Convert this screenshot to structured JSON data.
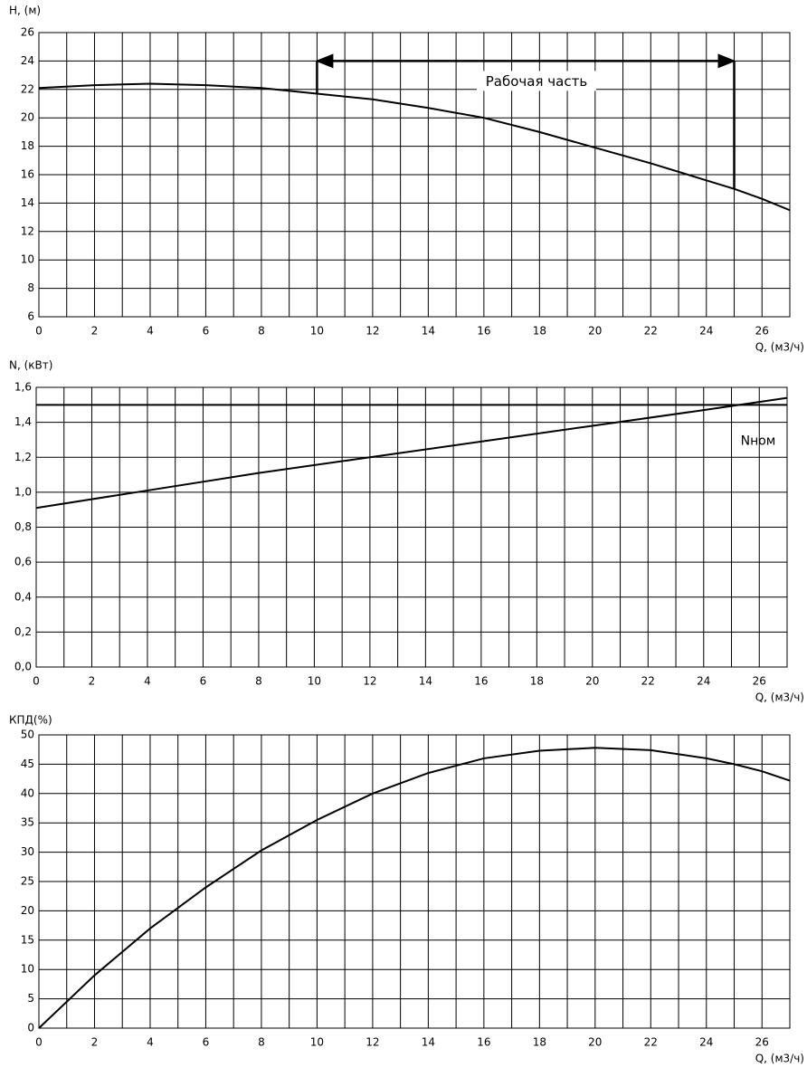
{
  "chart_data": [
    {
      "type": "line",
      "y_label": "H, (м)",
      "x_label": "Q, (м3/ч)",
      "x": [
        0,
        2,
        4,
        6,
        8,
        10,
        12,
        14,
        16,
        18,
        20,
        22,
        24,
        25,
        26,
        27
      ],
      "series": [
        {
          "color": "#000000",
          "values": [
            22.1,
            22.3,
            22.4,
            22.3,
            22.1,
            21.7,
            21.3,
            20.7,
            20.0,
            19.0,
            17.9,
            16.8,
            15.6,
            15.0,
            14.3,
            13.5
          ]
        }
      ],
      "xlim": [
        0,
        27
      ],
      "xticks": [
        0,
        2,
        4,
        6,
        8,
        10,
        12,
        14,
        16,
        18,
        20,
        22,
        24,
        26
      ],
      "xminor": [
        1,
        3,
        5,
        7,
        9,
        11,
        13,
        15,
        17,
        19,
        21,
        23,
        25,
        27
      ],
      "ylim": [
        6,
        26
      ],
      "yticks": [
        6,
        8,
        10,
        12,
        14,
        16,
        18,
        20,
        22,
        24,
        26
      ],
      "grid": true,
      "annotation": {
        "text": "Рабочая часть",
        "x": [
          10,
          25
        ],
        "y": 24
      }
    },
    {
      "type": "line",
      "y_label": "N, (кВт)",
      "x_label": "Q, (м3/ч)",
      "x": [
        0,
        4,
        8,
        12,
        16,
        20,
        24,
        27
      ],
      "series": [
        {
          "color": "#000000",
          "values": [
            0.91,
            1.01,
            1.11,
            1.2,
            1.29,
            1.38,
            1.47,
            1.54
          ]
        }
      ],
      "hline": {
        "value": 1.5,
        "label": "Nном"
      },
      "xlim": [
        0,
        27
      ],
      "xticks": [
        0,
        2,
        4,
        6,
        8,
        10,
        12,
        14,
        16,
        18,
        20,
        22,
        24,
        26
      ],
      "xminor": [
        1,
        3,
        5,
        7,
        9,
        11,
        13,
        15,
        17,
        19,
        21,
        23,
        25,
        27
      ],
      "ylim": [
        0,
        1.6
      ],
      "yticks": [
        {
          "value": 0,
          "label": "0,0"
        },
        {
          "value": 0.2,
          "label": "0,2"
        },
        {
          "value": 0.4,
          "label": "0,4"
        },
        {
          "value": 0.6,
          "label": "0,6"
        },
        {
          "value": 0.8,
          "label": "0,8"
        },
        {
          "value": 1.0,
          "label": "1,0"
        },
        {
          "value": 1.2,
          "label": "1,2"
        },
        {
          "value": 1.4,
          "label": "1,4"
        },
        {
          "value": 1.6,
          "label": "1,6"
        }
      ],
      "grid": true
    },
    {
      "type": "line",
      "y_label": "КПД(%)",
      "x_label": "Q, (м3/ч)",
      "x": [
        0,
        1,
        2,
        4,
        6,
        8,
        10,
        12,
        14,
        16,
        18,
        20,
        22,
        24,
        25,
        26,
        27
      ],
      "series": [
        {
          "color": "#000000",
          "values": [
            0,
            4.5,
            9,
            17,
            24,
            30.3,
            35.5,
            40,
            43.5,
            46,
            47.3,
            47.8,
            47.4,
            46,
            45,
            43.8,
            42.2
          ]
        }
      ],
      "xlim": [
        0,
        27
      ],
      "xticks": [
        0,
        2,
        4,
        6,
        8,
        10,
        12,
        14,
        16,
        18,
        20,
        22,
        24,
        26
      ],
      "xminor": [
        1,
        3,
        5,
        7,
        9,
        11,
        13,
        15,
        17,
        19,
        21,
        23,
        25,
        27
      ],
      "ylim": [
        0,
        50
      ],
      "yticks": [
        0,
        5,
        10,
        15,
        20,
        25,
        30,
        35,
        40,
        45,
        50
      ],
      "grid": true
    }
  ]
}
